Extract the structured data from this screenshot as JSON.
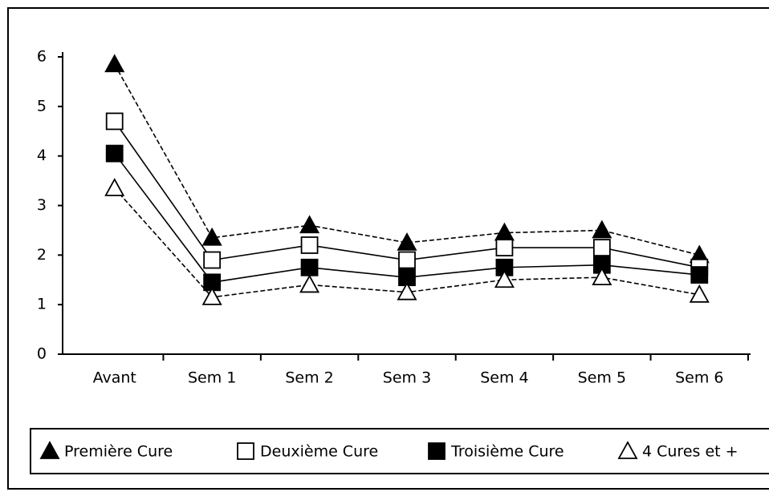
{
  "chart_data": {
    "type": "line",
    "categories": [
      "Avant",
      "Sem 1",
      "Sem 2",
      "Sem 3",
      "Sem 4",
      "Sem 5",
      "Sem 6"
    ],
    "series": [
      {
        "name": "Première Cure",
        "color": "#000000",
        "marker": "triangle",
        "filled": true,
        "dashed": true,
        "values": [
          5.85,
          2.35,
          2.6,
          2.25,
          2.45,
          2.5,
          2.0
        ]
      },
      {
        "name": "Deuxième Cure",
        "color": "#000000",
        "marker": "square",
        "filled": false,
        "dashed": false,
        "values": [
          4.7,
          1.9,
          2.2,
          1.9,
          2.15,
          2.15,
          1.75
        ]
      },
      {
        "name": "Troisième Cure",
        "color": "#000000",
        "marker": "square",
        "filled": true,
        "dashed": false,
        "values": [
          4.05,
          1.45,
          1.75,
          1.55,
          1.75,
          1.8,
          1.6
        ]
      },
      {
        "name": "4 Cures et +",
        "color": "#000000",
        "marker": "triangle",
        "filled": false,
        "dashed": true,
        "values": [
          3.35,
          1.15,
          1.4,
          1.25,
          1.5,
          1.55,
          1.2
        ]
      }
    ],
    "ylim": [
      0,
      6
    ],
    "yticks": [
      0,
      1,
      2,
      3,
      4,
      5,
      6
    ],
    "grid": false,
    "legend": "bottom"
  }
}
